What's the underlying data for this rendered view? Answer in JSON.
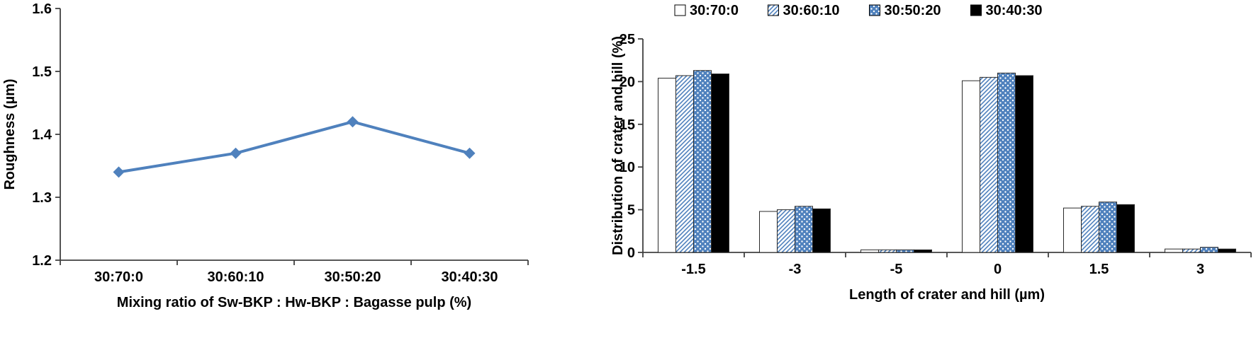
{
  "page": {
    "background": "#ffffff"
  },
  "chart_data": [
    {
      "id": "roughness-line-chart",
      "type": "line",
      "title": "",
      "xlabel": "Mixing ratio of Sw-BKP : Hw-BKP : Bagasse pulp (%)",
      "ylabel": "Roughness (µm)",
      "categories": [
        "30:70:0",
        "30:60:10",
        "30:50:20",
        "30:40:30"
      ],
      "values": [
        1.34,
        1.37,
        1.42,
        1.37
      ],
      "ylim": [
        1.2,
        1.6
      ],
      "yticks": [
        "1.2",
        "1.3",
        "1.4",
        "1.5",
        "1.6"
      ],
      "line_color": "#4f81bd",
      "marker": "diamond",
      "grid": false,
      "legend": "none"
    },
    {
      "id": "crater-hill-bar-chart",
      "type": "bar",
      "title": "",
      "xlabel": "Length of crater and hill (µm)",
      "ylabel": "Distribution of crater and hill (%)",
      "categories": [
        "-1.5",
        "-3",
        "-5",
        "0",
        "1.5",
        "3"
      ],
      "series": [
        {
          "name": "30:70:0",
          "fill": "white",
          "values": [
            20.4,
            4.8,
            0.3,
            20.1,
            5.2,
            0.4
          ]
        },
        {
          "name": "30:60:10",
          "fill": "hatch-blue",
          "values": [
            20.7,
            5.0,
            0.3,
            20.5,
            5.4,
            0.4
          ]
        },
        {
          "name": "30:50:20",
          "fill": "blue-dots",
          "values": [
            21.3,
            5.4,
            0.3,
            21.0,
            5.9,
            0.6
          ]
        },
        {
          "name": "30:40:30",
          "fill": "black",
          "values": [
            20.9,
            5.1,
            0.3,
            20.7,
            5.6,
            0.4
          ]
        }
      ],
      "ylim": [
        0,
        25
      ],
      "yticks": [
        "0",
        "5",
        "10",
        "15",
        "20",
        "25"
      ],
      "bar_outline": "#2b2b2b",
      "accent_blue": "#4f81bd",
      "grid": false,
      "legend": "top"
    }
  ]
}
